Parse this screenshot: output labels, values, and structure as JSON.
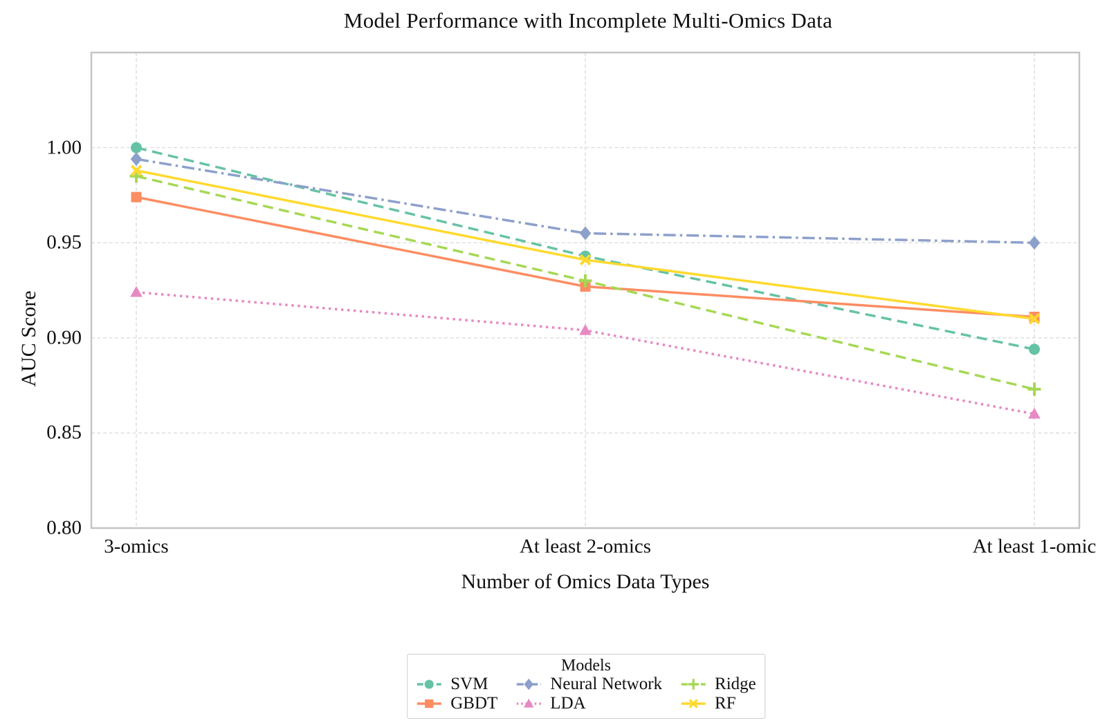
{
  "chart_data": {
    "type": "line",
    "title": "Model Performance with Incomplete Multi-Omics Data",
    "xlabel": "Number of Omics Data Types",
    "ylabel": "AUC Score",
    "categories": [
      "3-omics",
      "At least 2-omics",
      "At least 1-omic"
    ],
    "ylim": [
      0.8,
      1.05
    ],
    "yticks": [
      1.0,
      0.95,
      0.9,
      0.85,
      0.8
    ],
    "ytick_labels": [
      "1.00",
      "0.95",
      "0.90",
      "0.85",
      "0.80"
    ],
    "grid": true,
    "legend": {
      "title": "Models",
      "position": "below-chart",
      "columns": 3,
      "visual_order": [
        "SVM",
        "Neural Network",
        "Ridge",
        "GBDT",
        "LDA",
        "RF"
      ]
    },
    "series": [
      {
        "name": "SVM",
        "color": "#66c2a5",
        "linestyle": "dashed",
        "marker": "circle",
        "values": [
          1.0,
          0.943,
          0.894
        ]
      },
      {
        "name": "GBDT",
        "color": "#fc8d62",
        "linestyle": "solid",
        "marker": "square",
        "values": [
          0.974,
          0.927,
          0.911
        ]
      },
      {
        "name": "Neural Network",
        "color": "#8da0cb",
        "linestyle": "dashdot",
        "marker": "diamond",
        "values": [
          0.994,
          0.955,
          0.95
        ]
      },
      {
        "name": "LDA",
        "color": "#e78ac3",
        "linestyle": "dotted",
        "marker": "triangle",
        "values": [
          0.924,
          0.904,
          0.86
        ]
      },
      {
        "name": "Ridge",
        "color": "#a6d854",
        "linestyle": "dashed",
        "marker": "plus",
        "values": [
          0.985,
          0.93,
          0.873
        ]
      },
      {
        "name": "RF",
        "color": "#ffd92f",
        "linestyle": "solid",
        "marker": "x",
        "values": [
          0.988,
          0.941,
          0.91
        ]
      }
    ]
  }
}
